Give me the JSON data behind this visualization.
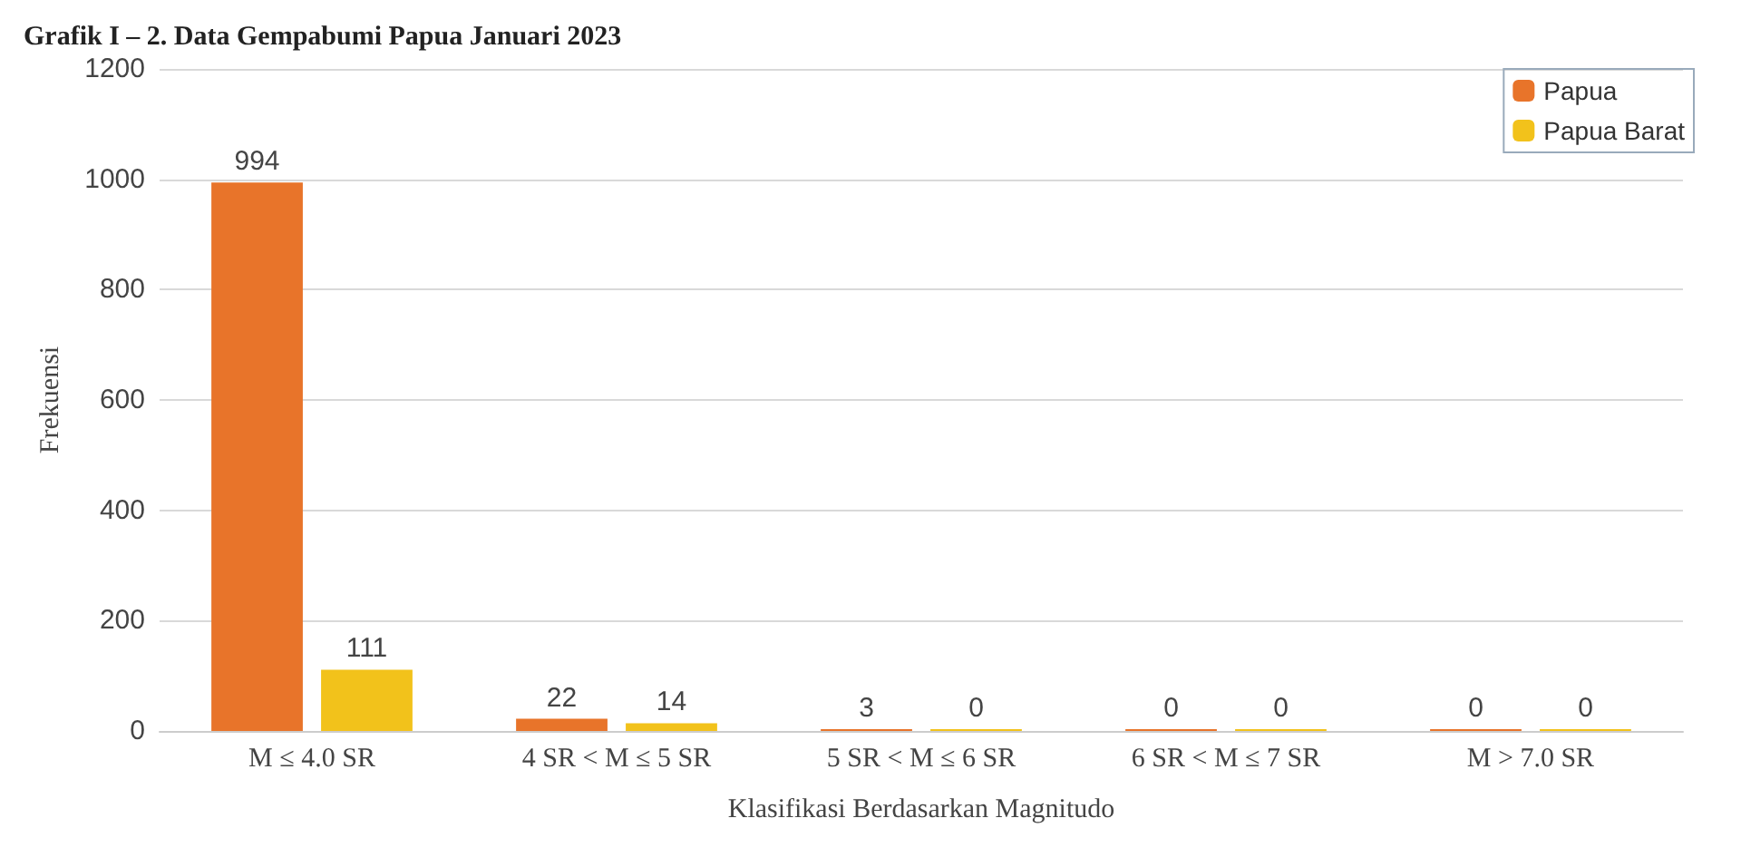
{
  "chart_data": {
    "type": "bar",
    "title": "Grafik I – 2. Data Gempabumi Papua Januari 2023",
    "categories": [
      "M ≤ 4.0 SR",
      "4 SR < M ≤ 5 SR",
      "5 SR < M ≤ 6 SR",
      "6 SR < M ≤ 7 SR",
      "M > 7.0 SR"
    ],
    "series": [
      {
        "name": "Papua",
        "color": "#e8742a",
        "values": [
          994,
          22,
          3,
          0,
          0
        ]
      },
      {
        "name": "Papua Barat",
        "color": "#f2c21b",
        "values": [
          111,
          14,
          0,
          0,
          0
        ]
      }
    ],
    "xlabel": "Klasifikasi Berdasarkan Magnitudo",
    "ylabel": "Frekuensi",
    "ylim": [
      0,
      1200
    ],
    "yticks": [
      0,
      200,
      400,
      600,
      800,
      1000,
      1200
    ],
    "grid": "y",
    "legend": "top right",
    "data_labels": true
  }
}
